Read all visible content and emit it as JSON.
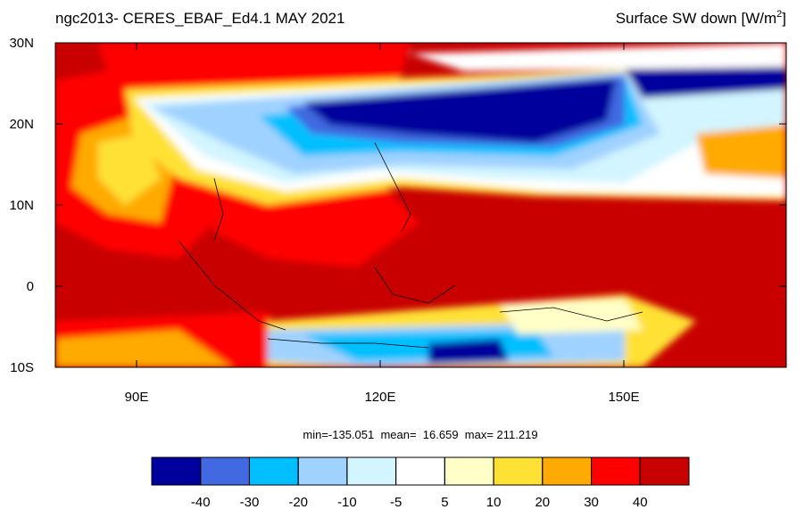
{
  "map": {
    "title_left": "ngc2013- CERES_EBAF_Ed4.1  MAY 2021",
    "title_right": "Surface SW down [W/m",
    "title_right_sup": "2",
    "title_right_end": "]",
    "xlim": [
      80,
      170
    ],
    "ylim": [
      -10,
      30
    ],
    "xticks": [
      {
        "value": 90,
        "label": "90E"
      },
      {
        "value": 120,
        "label": "120E"
      },
      {
        "value": 150,
        "label": "150E"
      }
    ],
    "yticks": [
      {
        "value": 30,
        "label": "30N"
      },
      {
        "value": 20,
        "label": "20N"
      },
      {
        "value": 10,
        "label": "10N"
      },
      0,
      {
        "value": -10,
        "label": "10S"
      }
    ],
    "stats": "min=-135.051  mean=  16.659  max= 211.219",
    "colorbar": {
      "levels": [
        -40,
        -30,
        -20,
        -10,
        -5,
        5,
        10,
        20,
        30,
        40
      ],
      "colors": [
        "#00009c",
        "#4169e1",
        "#00bfff",
        "#a0d2ff",
        "#d2f5ff",
        "#ffffff",
        "#ffffc8",
        "#ffe135",
        "#ffaa00",
        "#ff0000",
        "#c80000"
      ]
    }
  }
}
